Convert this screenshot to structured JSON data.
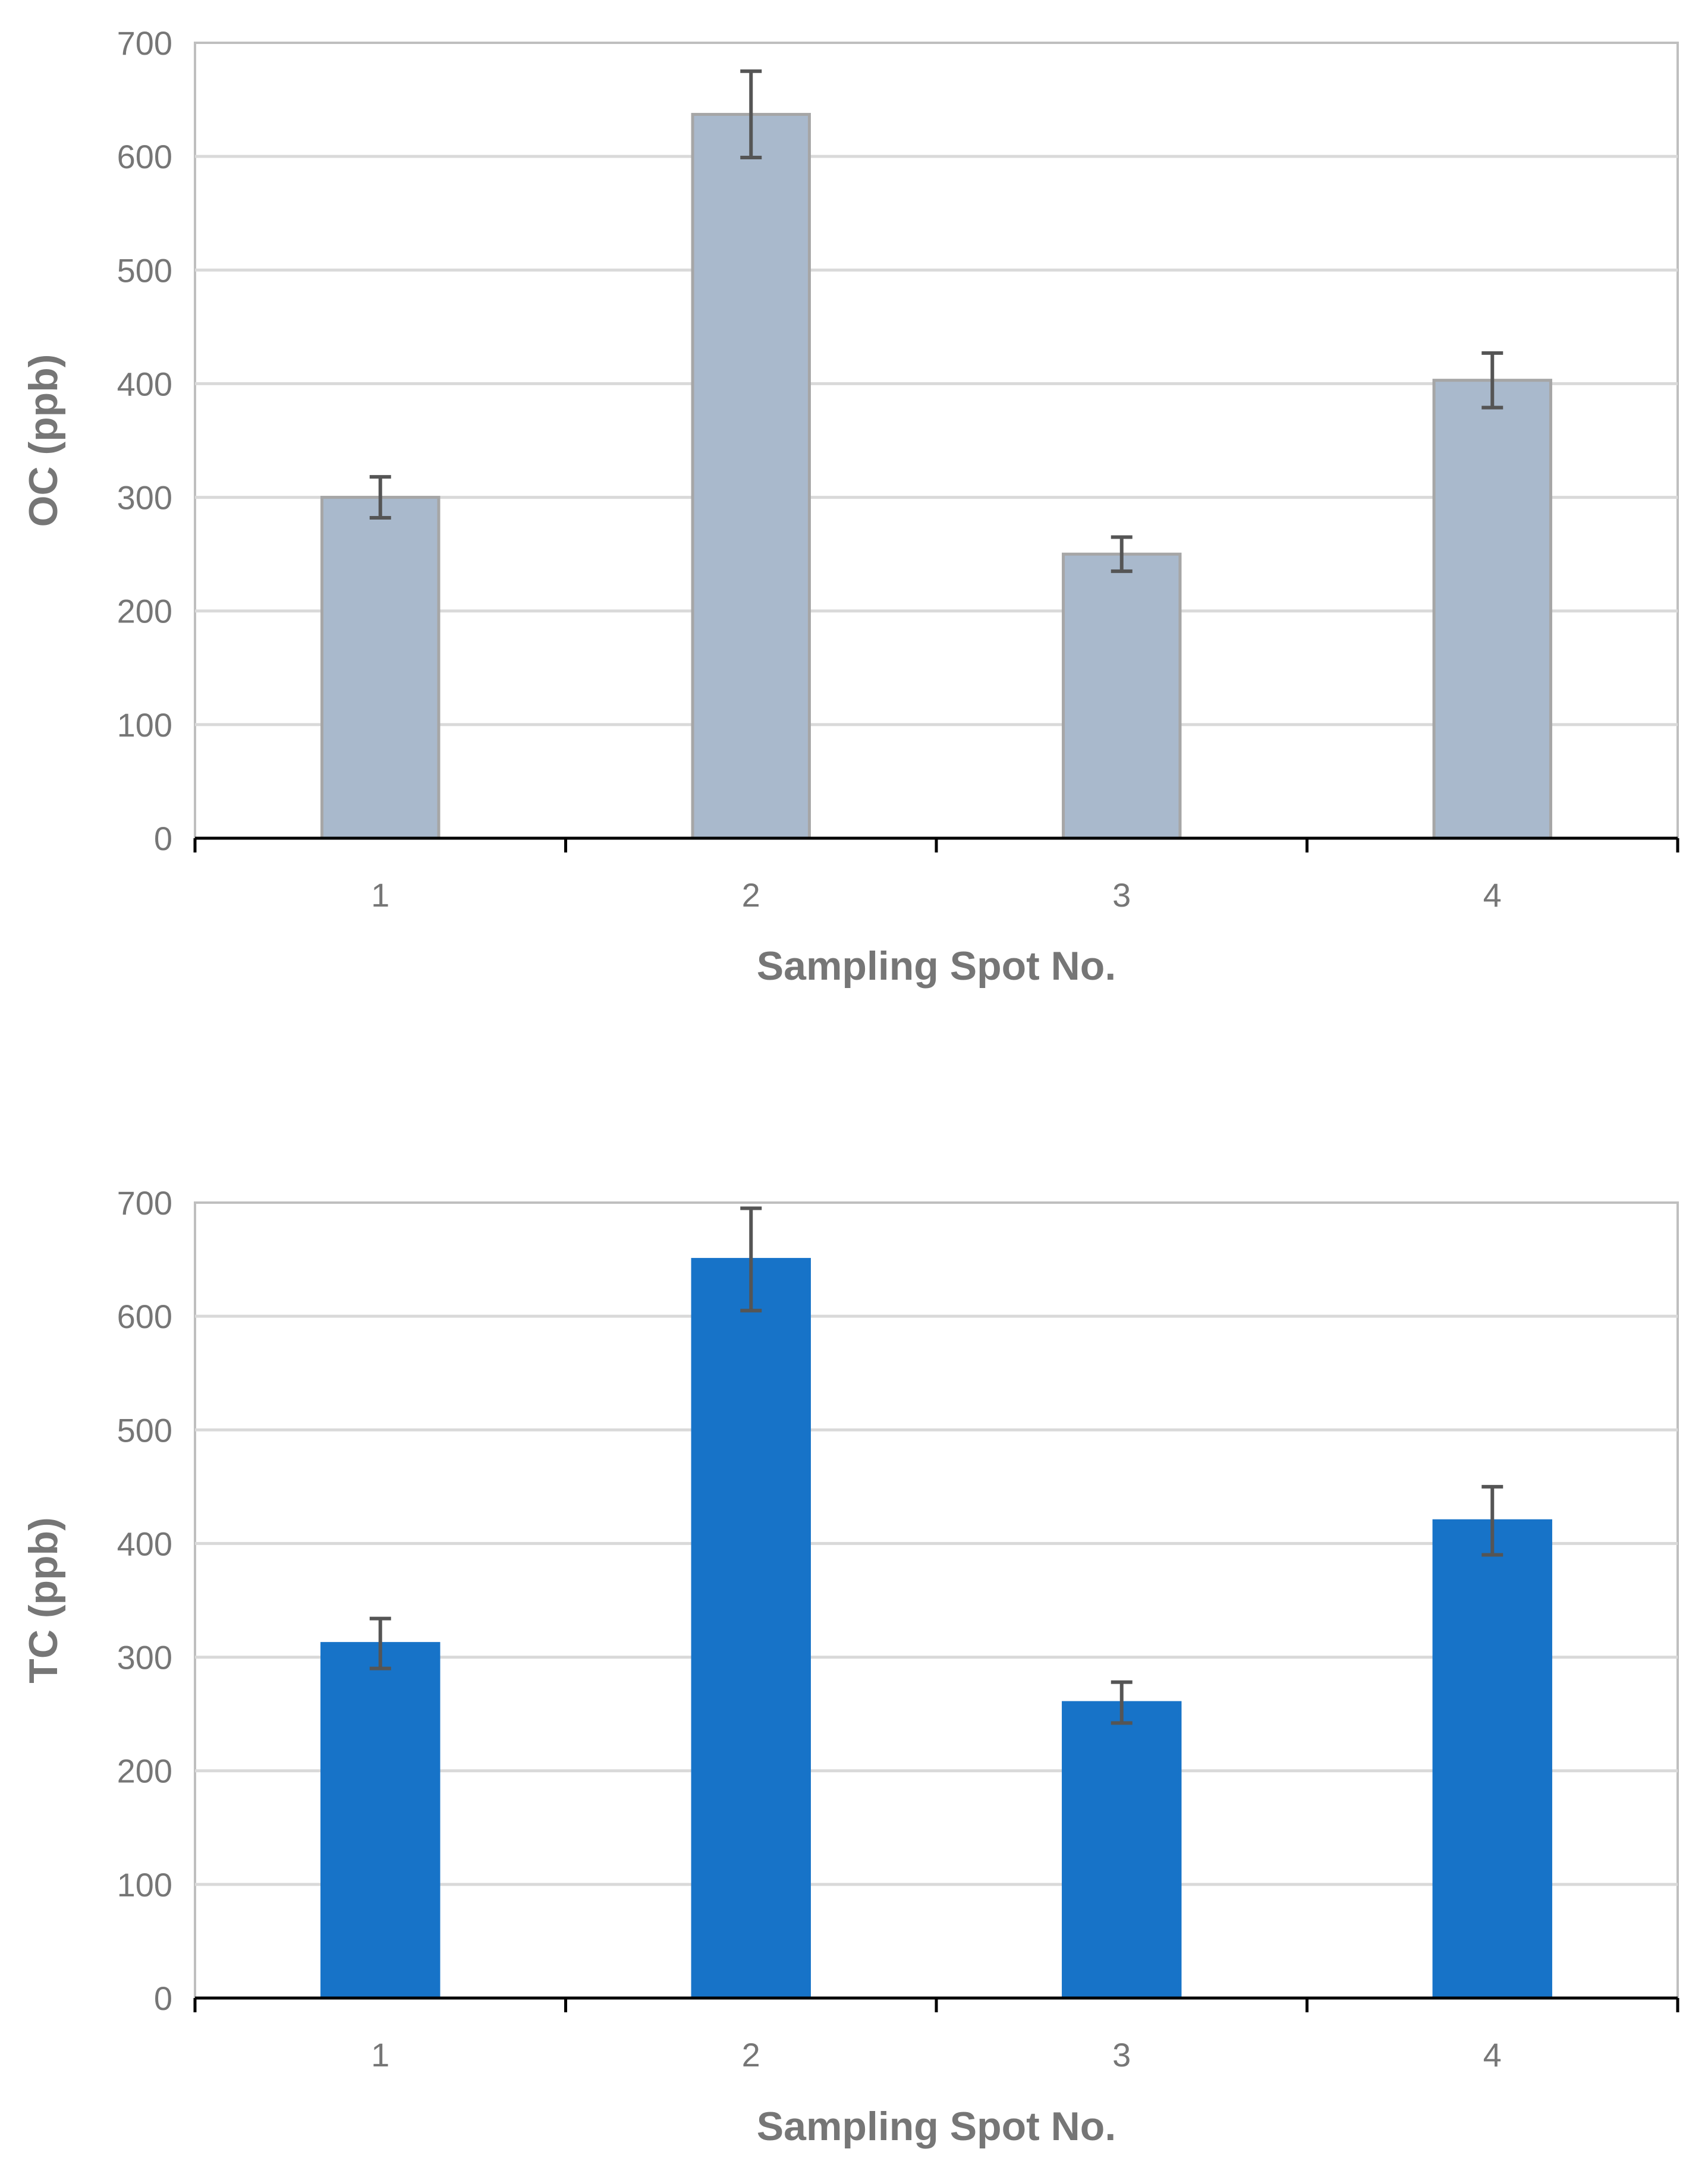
{
  "chart_data": [
    {
      "type": "bar",
      "title": "",
      "xlabel": "Sampling Spot No.",
      "ylabel": "OC (ppb)",
      "categories": [
        "1",
        "2",
        "3",
        "4"
      ],
      "values": [
        300,
        637,
        250,
        403
      ],
      "errors": [
        18,
        38,
        15,
        24
      ],
      "ylim": [
        0,
        700
      ],
      "yticks": [
        "0",
        "100",
        "200",
        "300",
        "400",
        "500",
        "600",
        "700"
      ],
      "grid": true,
      "bar_color": "#a9b9cc",
      "bar_edge_color": "#a6a6a6"
    },
    {
      "type": "bar",
      "title": "",
      "xlabel": "Sampling Spot No.",
      "ylabel": "TC (ppb)",
      "categories": [
        "1",
        "2",
        "3",
        "4"
      ],
      "values": [
        312,
        650,
        260,
        420
      ],
      "errors": [
        22,
        45,
        18,
        30
      ],
      "ylim": [
        0,
        700
      ],
      "yticks": [
        "0",
        "100",
        "200",
        "300",
        "400",
        "500",
        "600",
        "700"
      ],
      "grid": true,
      "bar_color": "#1773c8",
      "bar_edge_color": "#1773c8"
    }
  ]
}
